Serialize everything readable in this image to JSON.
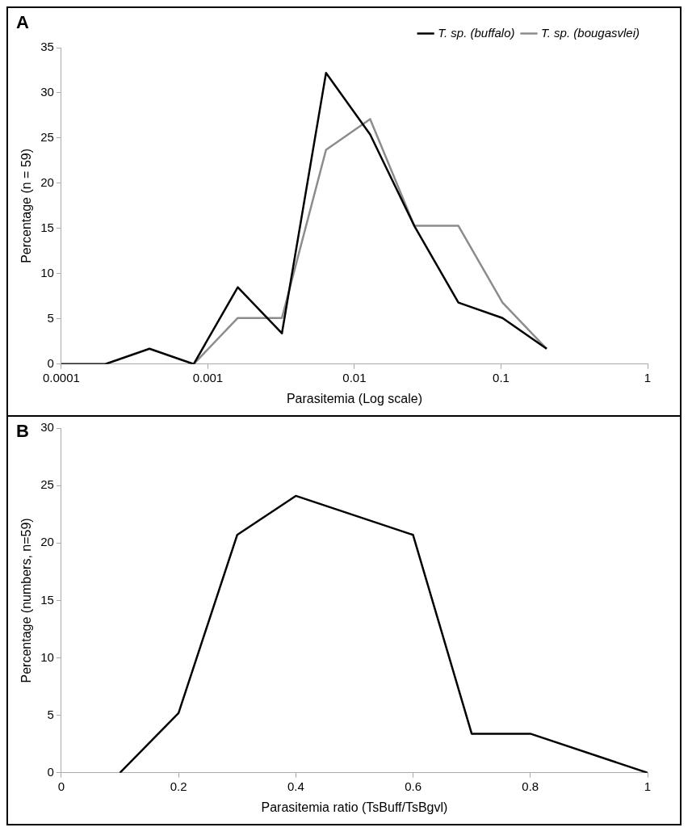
{
  "chart_data": [
    {
      "type": "line",
      "title": "A",
      "xlabel": "Parasitemia (Log scale)",
      "ylabel": "Percentage (n = 59)",
      "log": "x",
      "xlim": [
        0.0001,
        1
      ],
      "xticks": [
        0.0001,
        0.001,
        0.01,
        0.1,
        1
      ],
      "ylim": [
        0,
        35
      ],
      "yticks": [
        0,
        5,
        10,
        15,
        20,
        25,
        30,
        35
      ],
      "grid": false,
      "legend": "top right",
      "marker": "none",
      "series": [
        {
          "name": "T. sp. (buffalo)",
          "color": "#000000",
          "x": [
            0.0001,
            0.0002,
            0.0004,
            0.0008,
            0.0016,
            0.0032,
            0.0064,
            0.0128,
            0.0256,
            0.0512,
            0.1024,
            0.2048
          ],
          "values": [
            0,
            0,
            1.7,
            0,
            8.5,
            3.4,
            32.2,
            25.4,
            15.3,
            6.8,
            5.1,
            1.7
          ]
        },
        {
          "name": "T. sp. (bougasvlei)",
          "color": "#8c8c8c",
          "x": [
            0.0008,
            0.0016,
            0.0032,
            0.0064,
            0.0128,
            0.0256,
            0.0512,
            0.1024,
            0.2048
          ],
          "values": [
            0,
            5.1,
            5.1,
            23.7,
            27.1,
            15.3,
            15.3,
            6.8,
            1.7
          ]
        }
      ]
    },
    {
      "type": "line",
      "title": "B",
      "xlabel": "Parasitemia ratio (TsBuff/TsBgvl)",
      "ylabel": "Percentage (numbers, n=59)",
      "xlim": [
        0,
        1
      ],
      "xticks": [
        0,
        0.2,
        0.4,
        0.6,
        0.8,
        1
      ],
      "ylim": [
        0,
        30
      ],
      "yticks": [
        0,
        5,
        10,
        15,
        20,
        25,
        30
      ],
      "grid": false,
      "legend": false,
      "marker": "none",
      "series": [
        {
          "color": "#000000",
          "x": [
            0.1,
            0.2,
            0.3,
            0.4,
            0.6,
            0.7,
            0.8,
            1
          ],
          "values": [
            0,
            5.2,
            20.7,
            24.1,
            20.7,
            3.4,
            3.4,
            0
          ]
        }
      ]
    }
  ]
}
